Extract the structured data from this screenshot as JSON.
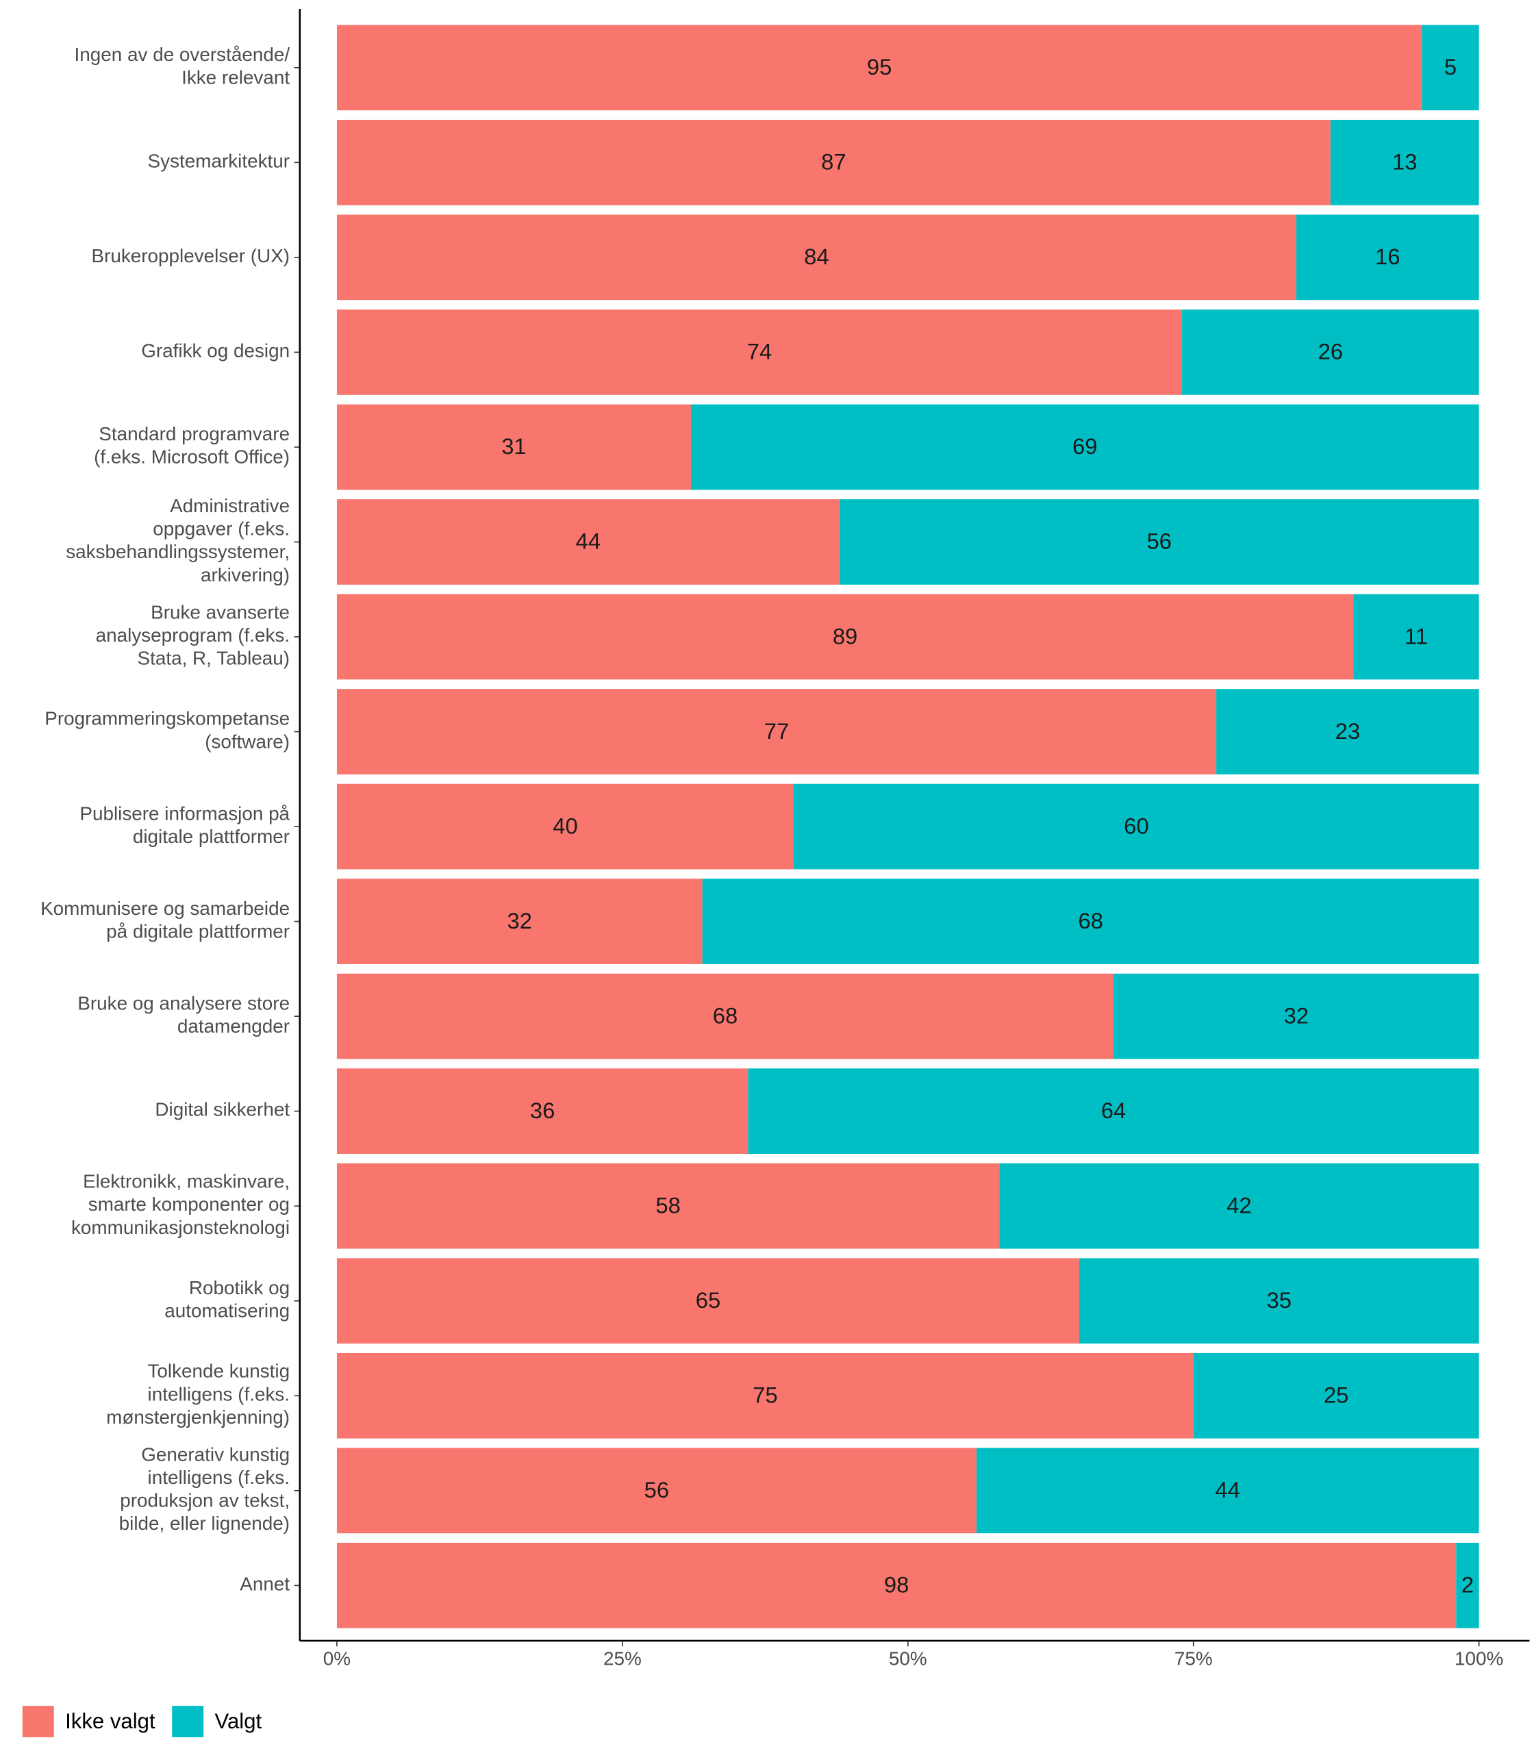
{
  "chart_data": {
    "type": "stacked_barh",
    "categories": [
      "Ingen av de overstående/\nIkke relevant",
      "Systemarkitektur",
      "Brukeropplevelser (UX)",
      "Grafikk og design",
      "Standard programvare\n(f.eks. Microsoft Office)",
      "Administrative\noppgaver (f.eks.\nsaksbehandlingssystemer,\narkivering)",
      "Bruke avanserte\nanalyseprogram (f.eks.\nStata, R, Tableau)",
      "Programmeringskompetanse\n(software)",
      "Publisere informasjon på\ndigitale plattformer",
      "Kommunisere og samarbeide\npå digitale plattformer",
      "Bruke og analysere store\ndatamengder",
      "Digital sikkerhet",
      "Elektronikk, maskinvare,\nsmarte komponenter og\nkommunikasjonsteknologi",
      "Robotikk og\nautomatisering",
      "Tolkende kunstig\nintelligens (f.eks.\nmønstergjenkjenning)",
      "Generativ kunstig\nintelligens (f.eks.\nproduksjon av tekst,\nbilde, eller lignende)",
      "Annet"
    ],
    "series": [
      {
        "name": "Ikke valgt",
        "color": "#F8766D",
        "values": [
          95,
          87,
          84,
          74,
          31,
          44,
          89,
          77,
          40,
          32,
          68,
          36,
          58,
          65,
          75,
          56,
          98
        ]
      },
      {
        "name": "Valgt",
        "color": "#00BFC4",
        "values": [
          5,
          13,
          16,
          26,
          69,
          56,
          11,
          23,
          60,
          68,
          32,
          64,
          42,
          35,
          25,
          44,
          2
        ]
      }
    ],
    "xlim": [
      0,
      100
    ],
    "xticks": [
      {
        "value": 0,
        "label": "0%"
      },
      {
        "value": 25,
        "label": "25%"
      },
      {
        "value": 50,
        "label": "50%"
      },
      {
        "value": 75,
        "label": "75%"
      },
      {
        "value": 100,
        "label": "100%"
      }
    ],
    "legend": "bottom-left"
  }
}
